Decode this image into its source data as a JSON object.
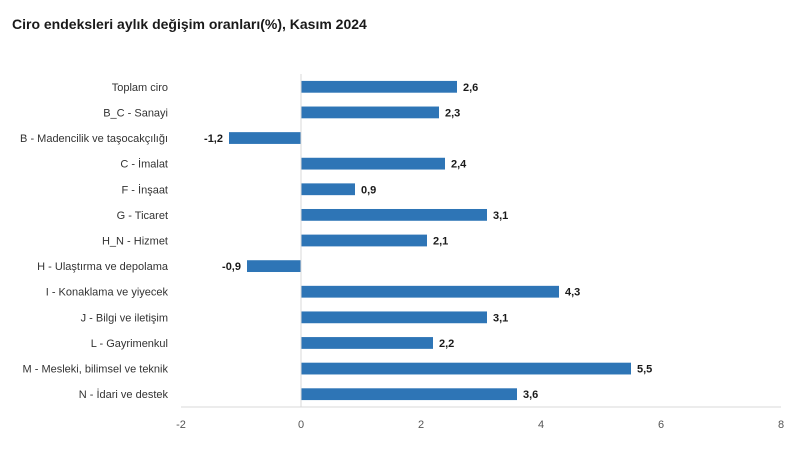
{
  "chart_data": {
    "type": "bar",
    "orientation": "horizontal",
    "title": "Ciro endeksleri aylık değişim oranları(%), Kasım 2024",
    "xlabel": "",
    "ylabel": "",
    "categories": [
      "Toplam ciro",
      "B_C - Sanayi",
      "B - Madencilik ve taşocakçılığı",
      "C - İmalat",
      "F - İnşaat",
      "G - Ticaret",
      "H_N - Hizmet",
      "H - Ulaştırma ve depolama",
      "I - Konaklama ve yiyecek",
      "J - Bilgi ve iletişim",
      "L - Gayrimenkul",
      "M - Mesleki, bilimsel ve teknik",
      "N - İdari ve destek"
    ],
    "values": [
      2.6,
      2.3,
      -1.2,
      2.4,
      0.9,
      3.1,
      2.1,
      -0.9,
      4.3,
      3.1,
      2.2,
      5.5,
      3.6
    ],
    "value_labels": [
      "2,6",
      "2,3",
      "-1,2",
      "2,4",
      "0,9",
      "3,1",
      "2,1",
      "-0,9",
      "4,3",
      "3,1",
      "2,2",
      "5,5",
      "3,6"
    ],
    "xlim": [
      -2,
      8
    ],
    "x_ticks": [
      -2,
      0,
      2,
      4,
      6,
      8
    ],
    "x_tick_labels": [
      "-2",
      "0",
      "2",
      "4",
      "6",
      "8"
    ],
    "grid": false,
    "legend": "none",
    "bar_color": "#2e75b6"
  }
}
